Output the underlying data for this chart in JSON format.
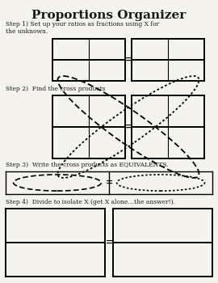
{
  "title": "Proportions Organizer",
  "step1_text": "Step 1) Set up your ratios as fractions using X for\nthe unknown.",
  "step2_text": "Step 2)  Find the cross products",
  "step3_text": "Step 3)  Write the cross products as EQUIVALENTS.",
  "step4_text": "Step 4)  Divide to isolate X (get X alone…the answer!).",
  "bg_color": "#f5f3ee",
  "box_color": "#000000",
  "text_color": "#1a1a1a",
  "title_fontsize": 11,
  "body_fontsize": 5.5
}
